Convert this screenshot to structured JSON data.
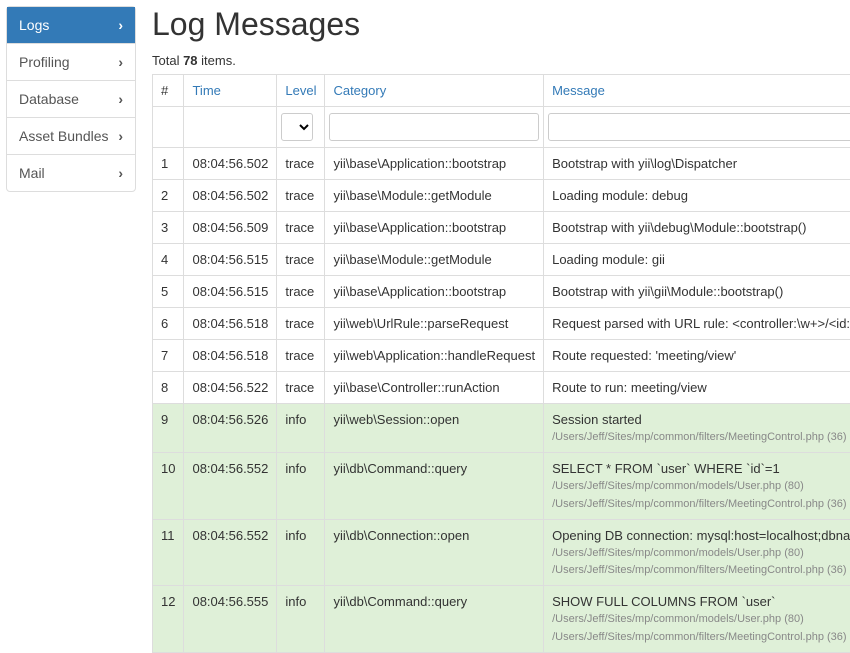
{
  "sidebar": {
    "items": [
      {
        "label": "Logs",
        "active": true
      },
      {
        "label": "Profiling",
        "active": false
      },
      {
        "label": "Database",
        "active": false
      },
      {
        "label": "Asset Bundles",
        "active": false
      },
      {
        "label": "Mail",
        "active": false
      }
    ]
  },
  "page": {
    "title": "Log Messages",
    "total_prefix": "Total ",
    "total_count": "78",
    "total_suffix": " items."
  },
  "table": {
    "headers": {
      "index": "#",
      "time": "Time",
      "level": "Level",
      "category": "Category",
      "message": "Message"
    },
    "filters": {
      "level_options": [
        ""
      ],
      "category_value": "",
      "message_value": ""
    },
    "rows": [
      {
        "n": "1",
        "time": "08:04:56.502",
        "level": "trace",
        "category": "yii\\base\\Application::bootstrap",
        "message": "Bootstrap with yii\\log\\Dispatcher",
        "sub": [],
        "info": false
      },
      {
        "n": "2",
        "time": "08:04:56.502",
        "level": "trace",
        "category": "yii\\base\\Module::getModule",
        "message": "Loading module: debug",
        "sub": [],
        "info": false
      },
      {
        "n": "3",
        "time": "08:04:56.509",
        "level": "trace",
        "category": "yii\\base\\Application::bootstrap",
        "message": "Bootstrap with yii\\debug\\Module::bootstrap()",
        "sub": [],
        "info": false
      },
      {
        "n": "4",
        "time": "08:04:56.515",
        "level": "trace",
        "category": "yii\\base\\Module::getModule",
        "message": "Loading module: gii",
        "sub": [],
        "info": false
      },
      {
        "n": "5",
        "time": "08:04:56.515",
        "level": "trace",
        "category": "yii\\base\\Application::bootstrap",
        "message": "Bootstrap with yii\\gii\\Module::bootstrap()",
        "sub": [],
        "info": false
      },
      {
        "n": "6",
        "time": "08:04:56.518",
        "level": "trace",
        "category": "yii\\web\\UrlRule::parseRequest",
        "message": "Request parsed with URL rule: <controller:\\w+>/<id:\\d+>",
        "sub": [],
        "info": false
      },
      {
        "n": "7",
        "time": "08:04:56.518",
        "level": "trace",
        "category": "yii\\web\\Application::handleRequest",
        "message": "Route requested: 'meeting/view'",
        "sub": [],
        "info": false
      },
      {
        "n": "8",
        "time": "08:04:56.522",
        "level": "trace",
        "category": "yii\\base\\Controller::runAction",
        "message": "Route to run: meeting/view",
        "sub": [],
        "info": false
      },
      {
        "n": "9",
        "time": "08:04:56.526",
        "level": "info",
        "category": "yii\\web\\Session::open",
        "message": "Session started",
        "sub": [
          "/Users/Jeff/Sites/mp/common/filters/MeetingControl.php (36)"
        ],
        "info": true
      },
      {
        "n": "10",
        "time": "08:04:56.552",
        "level": "info",
        "category": "yii\\db\\Command::query",
        "message": "SELECT * FROM `user` WHERE `id`=1",
        "sub": [
          "/Users/Jeff/Sites/mp/common/models/User.php (80)",
          "/Users/Jeff/Sites/mp/common/filters/MeetingControl.php (36)"
        ],
        "info": true
      },
      {
        "n": "11",
        "time": "08:04:56.552",
        "level": "info",
        "category": "yii\\db\\Connection::open",
        "message": "Opening DB connection: mysql:host=localhost;dbname=mp",
        "sub": [
          "/Users/Jeff/Sites/mp/common/models/User.php (80)",
          "/Users/Jeff/Sites/mp/common/filters/MeetingControl.php (36)"
        ],
        "info": true
      },
      {
        "n": "12",
        "time": "08:04:56.555",
        "level": "info",
        "category": "yii\\db\\Command::query",
        "message": "SHOW FULL COLUMNS FROM `user`",
        "sub": [
          "/Users/Jeff/Sites/mp/common/models/User.php (80)",
          "/Users/Jeff/Sites/mp/common/filters/MeetingControl.php (36)"
        ],
        "info": true
      }
    ]
  }
}
